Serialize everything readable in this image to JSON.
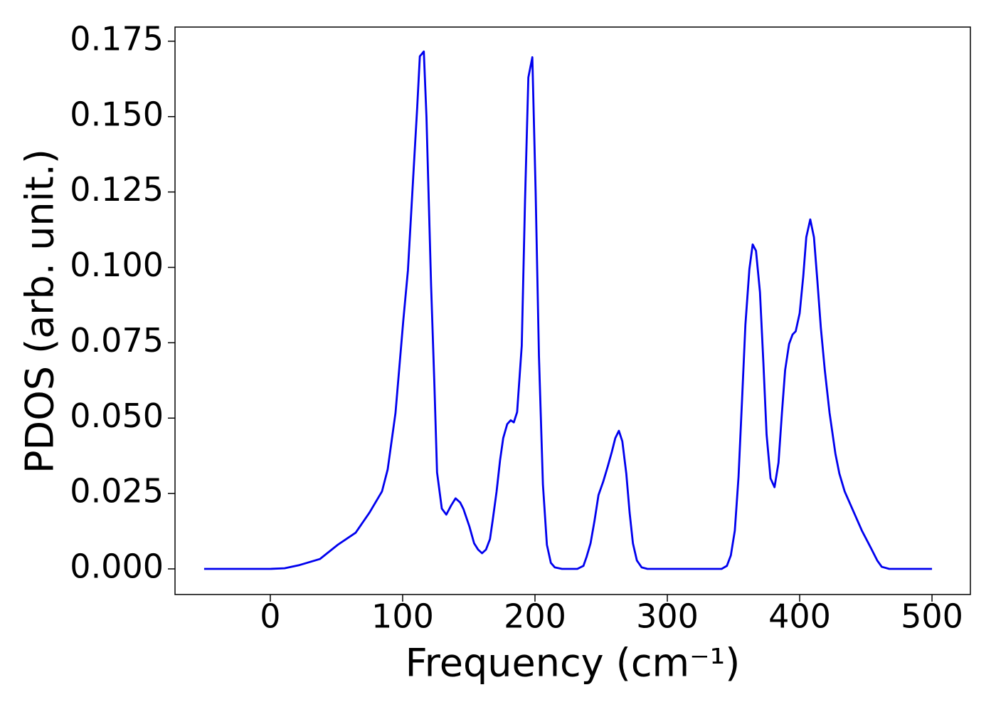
{
  "chart_data": {
    "type": "line",
    "xlabel": "Frequency (cm⁻¹)",
    "ylabel": "PDOS (arb. unit.)",
    "color": "#0000ee",
    "xlim": [
      -72,
      529
    ],
    "ylim": [
      -0.0085,
      0.1797
    ],
    "xticks": [
      0,
      100,
      200,
      300,
      400,
      500
    ],
    "yticks": [
      {
        "value": 0,
        "label": "0.000"
      },
      0.025,
      {
        "value": 0.05,
        "label": "0.050"
      },
      0.075,
      {
        "value": 0.1,
        "label": "0.100"
      },
      0.125,
      {
        "value": 0.15,
        "label": "0.150"
      },
      0.175
    ],
    "x": [
      -50,
      0,
      10.8,
      21.5,
      37.6,
      51,
      64.5,
      75,
      84.4,
      88.7,
      94.6,
      100.5,
      104,
      108,
      111,
      113,
      116,
      118,
      121.5,
      124,
      126,
      129.6,
      133,
      136.6,
      140,
      143.5,
      146,
      150.5,
      154,
      157,
      160,
      163,
      166,
      168,
      171,
      173.6,
      176,
      179,
      181.7,
      184,
      186.5,
      190,
      192.5,
      195,
      198,
      200.5,
      203,
      206,
      209,
      212,
      215,
      220.4,
      232,
      236.6,
      239,
      242,
      245,
      248,
      251.6,
      255,
      258,
      260.7,
      263.4,
      266,
      269,
      271.5,
      274,
      277,
      280.6,
      285,
      341,
      345,
      348,
      351,
      353.8,
      356.5,
      359,
      362,
      364.5,
      367,
      370,
      372.6,
      375,
      378,
      381,
      384,
      386.6,
      389,
      392,
      394.6,
      397,
      400,
      402.7,
      405,
      408,
      410.8,
      413.4,
      416,
      419,
      422.6,
      427,
      430,
      434,
      441,
      447,
      454,
      458.6,
      462,
      467.7,
      500
    ],
    "values": [
      0,
      0,
      0.0002,
      0.0012,
      0.0033,
      0.008,
      0.012,
      0.0187,
      0.0257,
      0.033,
      0.0517,
      0.0824,
      0.099,
      0.13,
      0.153,
      0.17,
      0.1716,
      0.15,
      0.094,
      0.061,
      0.032,
      0.02,
      0.018,
      0.021,
      0.0234,
      0.022,
      0.0198,
      0.014,
      0.0085,
      0.0064,
      0.0052,
      0.0064,
      0.0099,
      0.016,
      0.0257,
      0.036,
      0.0434,
      0.048,
      0.0493,
      0.0486,
      0.052,
      0.074,
      0.1225,
      0.163,
      0.1697,
      0.125,
      0.0706,
      0.028,
      0.008,
      0.002,
      0.0005,
      0,
      0,
      0.001,
      0.004,
      0.0085,
      0.016,
      0.0245,
      0.029,
      0.034,
      0.0387,
      0.0434,
      0.0458,
      0.0423,
      0.0316,
      0.0187,
      0.0085,
      0.0028,
      0.0005,
      0,
      0,
      0.001,
      0.0045,
      0.0127,
      0.0305,
      0.0564,
      0.081,
      0.0994,
      0.1076,
      0.1055,
      0.0918,
      0.0682,
      0.0446,
      0.03,
      0.0271,
      0.0352,
      0.0517,
      0.0659,
      0.0746,
      0.0777,
      0.0788,
      0.0848,
      0.097,
      0.11,
      0.1159,
      0.11,
      0.0954,
      0.08,
      0.0659,
      0.0517,
      0.0382,
      0.0316,
      0.0257,
      0.0187,
      0.0127,
      0.0068,
      0.0028,
      0.0007,
      0,
      0
    ]
  }
}
